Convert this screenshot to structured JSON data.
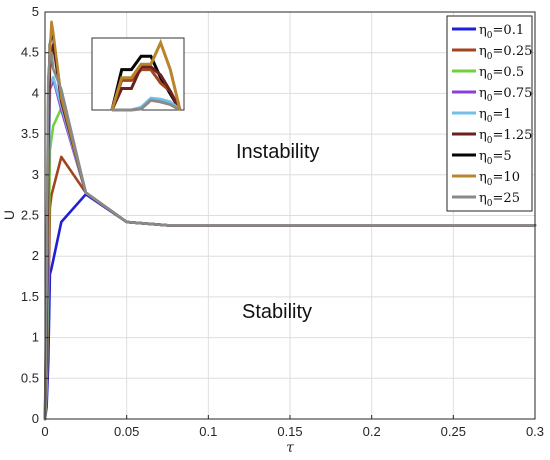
{
  "chart_data": {
    "type": "line",
    "xlabel": "τ",
    "ylabel": "U",
    "xlim": [
      0,
      0.3
    ],
    "ylim": [
      0,
      5
    ],
    "xticks": [
      0,
      0.05,
      0.1,
      0.15,
      0.2,
      0.25,
      0.3
    ],
    "xtick_labels": [
      "0",
      "0.05",
      "0.1",
      "0.15",
      "0.2",
      "0.25",
      "0.3"
    ],
    "yticks": [
      0,
      0.5,
      1,
      1.5,
      2,
      2.5,
      3,
      3.5,
      4,
      4.5,
      5
    ],
    "ytick_labels": [
      "0",
      "0.5",
      "1",
      "1.5",
      "2",
      "2.5",
      "3",
      "3.5",
      "4",
      "4.5",
      "5"
    ],
    "grid": true,
    "legend_position": "top-right",
    "annotations": [
      {
        "text": "Instability",
        "x": 0.145,
        "y": 3.2
      },
      {
        "text": "Stability",
        "x": 0.145,
        "y": 1.35
      }
    ],
    "series": [
      {
        "name_base": "η",
        "name_sub": "0",
        "name_value": "=0.1",
        "color": "#1f1fd8",
        "x": [
          0,
          0.001,
          0.002,
          0.003,
          0.004,
          0.01,
          0.025,
          0.05,
          0.075,
          0.3
        ],
        "y": [
          0,
          0.15,
          0.7,
          1.78,
          1.85,
          2.42,
          2.76,
          2.42,
          2.38,
          2.38
        ]
      },
      {
        "name_base": "η",
        "name_sub": "0",
        "name_value": "=0.25",
        "color": "#a0461e",
        "x": [
          0,
          0.001,
          0.002,
          0.003,
          0.004,
          0.01,
          0.025,
          0.05,
          0.075,
          0.3
        ],
        "y": [
          0,
          0.3,
          1.4,
          2.6,
          2.75,
          3.22,
          2.78,
          2.42,
          2.38,
          2.38
        ]
      },
      {
        "name_base": "η",
        "name_sub": "0",
        "name_value": "=0.5",
        "color": "#6ed23c",
        "x": [
          0,
          0.001,
          0.002,
          0.003,
          0.004,
          0.005,
          0.01,
          0.025,
          0.05,
          0.075,
          0.3
        ],
        "y": [
          0,
          0.4,
          1.8,
          3.3,
          3.45,
          3.6,
          3.82,
          2.78,
          2.42,
          2.38,
          2.38
        ]
      },
      {
        "name_base": "η",
        "name_sub": "0",
        "name_value": "=0.75",
        "color": "#8a3fd6",
        "x": [
          0,
          0.001,
          0.002,
          0.003,
          0.004,
          0.005,
          0.01,
          0.025,
          0.05,
          0.075,
          0.3
        ],
        "y": [
          0,
          0.6,
          2.5,
          4.05,
          4.1,
          4.18,
          3.8,
          2.78,
          2.42,
          2.38,
          2.38
        ]
      },
      {
        "name_base": "η",
        "name_sub": "0",
        "name_value": "=1",
        "color": "#74bfea",
        "x": [
          0,
          0.001,
          0.002,
          0.003,
          0.004,
          0.005,
          0.01,
          0.025,
          0.05,
          0.075,
          0.3
        ],
        "y": [
          0,
          0.8,
          2.9,
          4.1,
          4.15,
          4.2,
          3.85,
          2.78,
          2.42,
          2.38,
          2.38
        ]
      },
      {
        "name_base": "η",
        "name_sub": "0",
        "name_value": "=1.25",
        "color": "#6e1f1f",
        "x": [
          0,
          0.001,
          0.002,
          0.003,
          0.004,
          0.005,
          0.01,
          0.025,
          0.05,
          0.075,
          0.3
        ],
        "y": [
          0,
          1.0,
          3.3,
          4.3,
          4.45,
          4.6,
          3.9,
          2.78,
          2.42,
          2.38,
          2.38
        ]
      },
      {
        "name_base": "η",
        "name_sub": "0",
        "name_value": "=5",
        "color": "#050505",
        "x": [
          0,
          0.001,
          0.002,
          0.003,
          0.004,
          0.005,
          0.01,
          0.025,
          0.05,
          0.075,
          0.3
        ],
        "y": [
          0,
          1.4,
          3.9,
          4.6,
          4.72,
          4.7,
          3.95,
          2.78,
          2.42,
          2.38,
          2.38
        ]
      },
      {
        "name_base": "η",
        "name_sub": "0",
        "name_value": "=10",
        "color": "#b8842c",
        "x": [
          0,
          0.001,
          0.002,
          0.003,
          0.004,
          0.005,
          0.01,
          0.025,
          0.05,
          0.075,
          0.3
        ],
        "y": [
          0,
          1.6,
          4.1,
          4.5,
          4.88,
          4.75,
          3.95,
          2.78,
          2.42,
          2.38,
          2.38
        ]
      },
      {
        "name_base": "η",
        "name_sub": "0",
        "name_value": "=25",
        "color": "#8a8a8a",
        "x": [
          0,
          0.001,
          0.002,
          0.003,
          0.004,
          0.005,
          0.01,
          0.025,
          0.05,
          0.075,
          0.3
        ],
        "y": [
          0,
          1.9,
          4.2,
          4.45,
          4.5,
          4.3,
          4.05,
          2.78,
          2.42,
          2.38,
          2.38
        ]
      }
    ],
    "inset": {
      "x": [
        0.001,
        0.002,
        0.003,
        0.004,
        0.005,
        0.006,
        0.007,
        0.008
      ],
      "ylim": [
        3.7,
        5.0
      ],
      "series": [
        {
          "color": "#050505",
          "y": [
            3.7,
            4.45,
            4.45,
            4.7,
            4.7,
            4.3,
            4.0,
            3.7
          ]
        },
        {
          "color": "#a0461e",
          "y": [
            3.7,
            4.25,
            4.25,
            4.45,
            4.45,
            4.2,
            4.05,
            3.7
          ]
        },
        {
          "color": "#6e1f1f",
          "y": [
            3.7,
            4.1,
            4.1,
            4.5,
            4.5,
            4.35,
            4.05,
            3.7
          ]
        },
        {
          "color": "#74bfea",
          "y": [
            3.7,
            3.7,
            3.7,
            3.75,
            3.92,
            3.9,
            3.85,
            3.7
          ]
        },
        {
          "color": "#8a8a8a",
          "y": [
            3.7,
            3.7,
            3.7,
            3.72,
            3.88,
            3.85,
            3.8,
            3.7
          ]
        },
        {
          "color": "#b8842c",
          "y": [
            3.7,
            4.3,
            4.3,
            4.55,
            4.55,
            4.95,
            4.45,
            3.7
          ]
        }
      ]
    }
  }
}
